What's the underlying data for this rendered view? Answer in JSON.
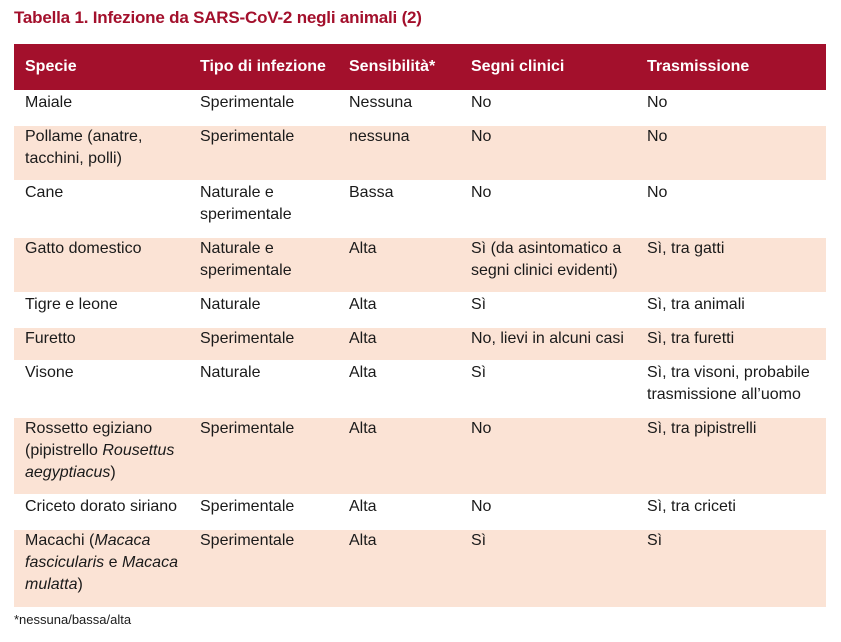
{
  "title": "Tabella 1. Infezione da SARS-CoV-2 negli animali (2)",
  "colors": {
    "header_bg": "#a3102c",
    "title_color": "#a3102c",
    "stripe_bg": "#fbe3d5"
  },
  "table": {
    "headers": [
      "Specie",
      "Tipo di infezione",
      "Sensibilità*",
      "Segni clinici",
      "Trasmissione"
    ],
    "rows": [
      {
        "specie_lines": [
          "Maiale"
        ],
        "tipo_lines": [
          "Sperimentale"
        ],
        "sensibilita": "Nessuna",
        "segni_lines": [
          "No"
        ],
        "trasmissione_lines": [
          "No"
        ]
      },
      {
        "specie_lines": [
          "Pollame (anatre,",
          "tacchini, polli)"
        ],
        "tipo_lines": [
          "Sperimentale"
        ],
        "sensibilita": "nessuna",
        "segni_lines": [
          "No"
        ],
        "trasmissione_lines": [
          "No"
        ]
      },
      {
        "specie_lines": [
          "Cane"
        ],
        "tipo_lines": [
          "Naturale e",
          "sperimentale"
        ],
        "sensibilita": "Bassa",
        "segni_lines": [
          "No"
        ],
        "trasmissione_lines": [
          "No"
        ]
      },
      {
        "specie_lines": [
          "Gatto domestico"
        ],
        "tipo_lines": [
          "Naturale e",
          "sperimentale"
        ],
        "sensibilita": "Alta",
        "segni_lines": [
          "Sì (da asintomatico a",
          "segni clinici evidenti)"
        ],
        "trasmissione_lines": [
          "Sì, tra gatti"
        ]
      },
      {
        "specie_lines": [
          "Tigre e leone"
        ],
        "tipo_lines": [
          "Naturale"
        ],
        "sensibilita": "Alta",
        "segni_lines": [
          "Sì"
        ],
        "trasmissione_lines": [
          "Sì, tra animali"
        ]
      },
      {
        "specie_lines": [
          "Furetto"
        ],
        "tipo_lines": [
          "Sperimentale"
        ],
        "sensibilita": "Alta",
        "segni_lines": [
          "No, lievi in alcuni casi"
        ],
        "trasmissione_lines": [
          "Sì, tra furetti"
        ]
      },
      {
        "specie_lines": [
          "Visone"
        ],
        "tipo_lines": [
          "Naturale"
        ],
        "sensibilita": "Alta",
        "segni_lines": [
          "Sì"
        ],
        "trasmissione_lines": [
          "Sì, tra visoni, probabile",
          "trasmissione all’uomo"
        ]
      },
      {
        "specie_l1": "Rossetto egiziano",
        "specie_l2a": "(pipistrello ",
        "specie_l2b": "Rousettus",
        "specie_l3a": "aegyptiacus",
        "specie_l3b": ")",
        "tipo_lines": [
          "Sperimentale"
        ],
        "sensibilita": "Alta",
        "segni_lines": [
          "No"
        ],
        "trasmissione_lines": [
          "Sì, tra pipistrelli"
        ]
      },
      {
        "specie_lines": [
          "Criceto dorato siriano"
        ],
        "tipo_lines": [
          "Sperimentale"
        ],
        "sensibilita": "Alta",
        "segni_lines": [
          "No"
        ],
        "trasmissione_lines": [
          "Sì, tra criceti"
        ]
      },
      {
        "specie_l1a": "Macachi (",
        "specie_l1b": "Macaca",
        "specie_l2a": "fascicularis",
        "specie_l2b": " e ",
        "specie_l2c": "Macaca",
        "specie_l3a": "mulatta",
        "specie_l3b": ")",
        "tipo_lines": [
          "Sperimentale"
        ],
        "sensibilita": "Alta",
        "segni_lines": [
          "Sì"
        ],
        "trasmissione_lines": [
          "Sì"
        ]
      }
    ]
  },
  "footnote": "*nessuna/bassa/alta"
}
